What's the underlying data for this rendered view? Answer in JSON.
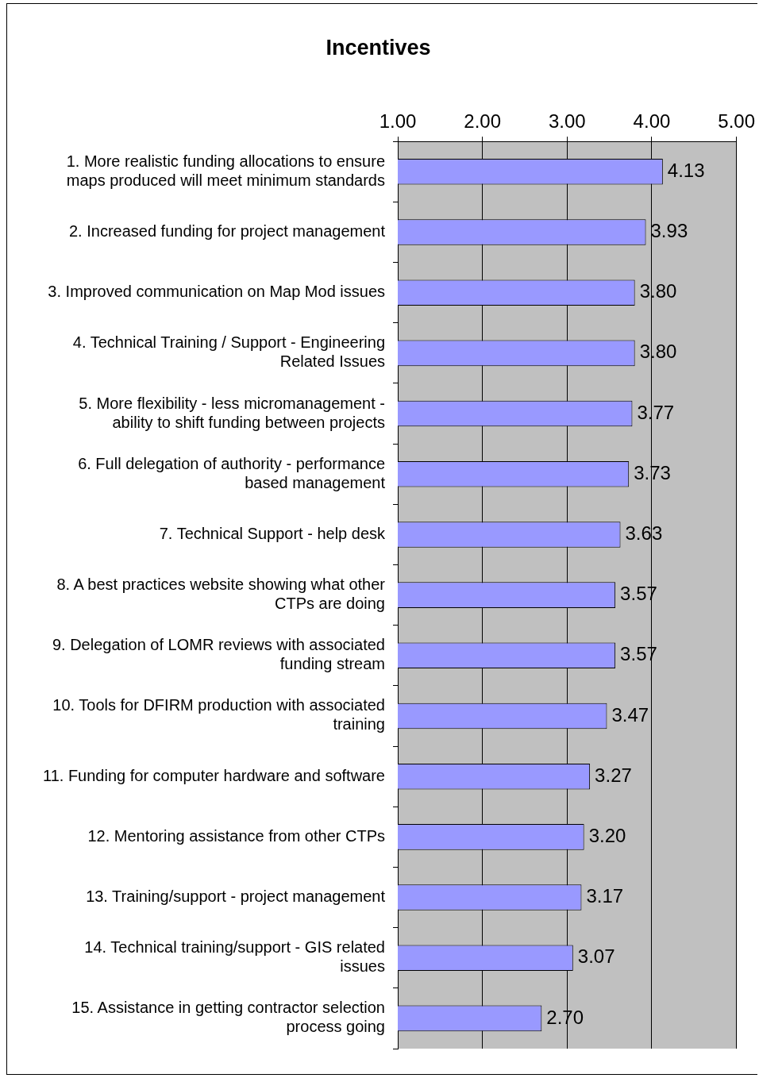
{
  "chart_data": {
    "type": "bar",
    "orientation": "horizontal",
    "title": "Incentives",
    "categories": [
      "1. More realistic funding allocations to ensure maps produced will meet minimum standards",
      "2. Increased funding for project management",
      "3. Improved communication on Map Mod issues",
      "4. Technical Training / Support - Engineering Related Issues",
      "5. More flexibility - less micromanagement - ability to shift funding between projects",
      "6. Full delegation of authority - performance based management",
      "7. Technical Support - help desk",
      "8. A best practices website showing what other CTPs are doing",
      "9. Delegation of LOMR reviews with associated funding stream",
      "10. Tools for DFIRM production with associated training",
      "11. Funding for computer hardware and software",
      "12. Mentoring assistance from other CTPs",
      "13. Training/support - project management",
      "14. Technical training/support - GIS related issues",
      "15. Assistance in getting contractor selection process going"
    ],
    "values": [
      4.13,
      3.93,
      3.8,
      3.8,
      3.77,
      3.73,
      3.63,
      3.57,
      3.57,
      3.47,
      3.27,
      3.2,
      3.17,
      3.07,
      2.7
    ],
    "value_labels": [
      "4.13",
      "3.93",
      "3.80",
      "3.80",
      "3.77",
      "3.73",
      "3.63",
      "3.57",
      "3.57",
      "3.47",
      "3.27",
      "3.20",
      "3.17",
      "3.07",
      "2.70"
    ],
    "color": "#9999ff",
    "xlim": [
      1,
      5
    ],
    "xticks": [
      {
        "value": 1,
        "label": "1.00"
      },
      {
        "value": 2,
        "label": "2.00"
      },
      {
        "value": 3,
        "label": "3.00"
      },
      {
        "value": 4,
        "label": "4.00"
      },
      {
        "value": 5,
        "label": "5.00"
      }
    ],
    "grid": "x",
    "legend": false
  }
}
